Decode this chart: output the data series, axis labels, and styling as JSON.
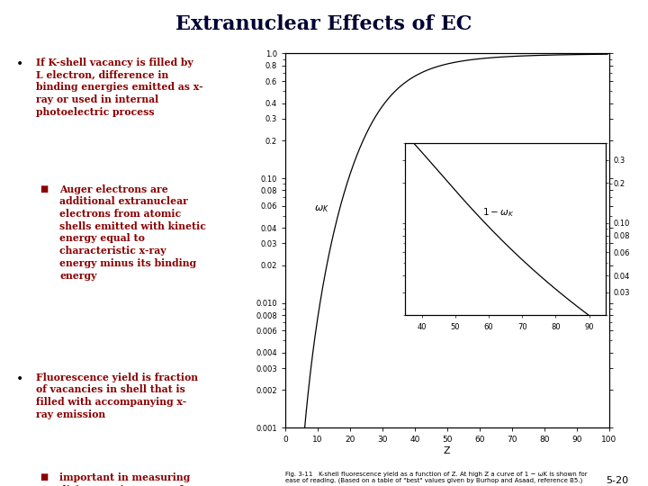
{
  "title": "Extranuclear Effects of EC",
  "title_bg": "#fffff0",
  "slide_bg": "#ffffff",
  "bullet_color": "#8b0000",
  "fig_caption": "Fig. 3-11   K-shell fluorescence yield as a function of Z. At high Z a curve of 1 − ωK is shown for\nease of reading. (Based on a table of \"best\" values given by Burhop and Asaad, reference B5.)",
  "page_num": "5-20",
  "main_plot": {
    "xlabel": "Z",
    "xmin": 0,
    "xmax": 100,
    "ymin": 0.001,
    "ymax": 1.0,
    "yticks_left": [
      0.001,
      0.002,
      0.003,
      0.004,
      0.006,
      0.008,
      0.01,
      0.02,
      0.03,
      0.04,
      0.06,
      0.08,
      0.1,
      0.2,
      0.3,
      0.4,
      0.6,
      0.8,
      1.0
    ],
    "ytick_labels": [
      "0.001",
      "0.002",
      "0.003",
      "0.004",
      "0.006",
      "0.008",
      "0.010",
      "0.02",
      "0.03",
      "0.04",
      "0.06",
      "0.08",
      "0.10",
      "0.2",
      "0.3",
      "0.4",
      "0.6",
      "0.8",
      "1.0"
    ],
    "xticks": [
      0,
      10,
      20,
      30,
      40,
      50,
      60,
      70,
      80,
      90,
      100
    ]
  },
  "inset_plot": {
    "xmin": 35,
    "xmax": 95,
    "ymin": 0.02,
    "ymax": 0.4,
    "xticks": [
      40,
      50,
      60,
      70,
      80,
      90
    ],
    "yticks_right": [
      0.03,
      0.04,
      0.06,
      0.08,
      0.1,
      0.2,
      0.3
    ],
    "ytick_labels_right": [
      "0.03",
      "0.04",
      "0.06",
      "0.08",
      "0.10",
      "0.2",
      "0.3"
    ]
  }
}
